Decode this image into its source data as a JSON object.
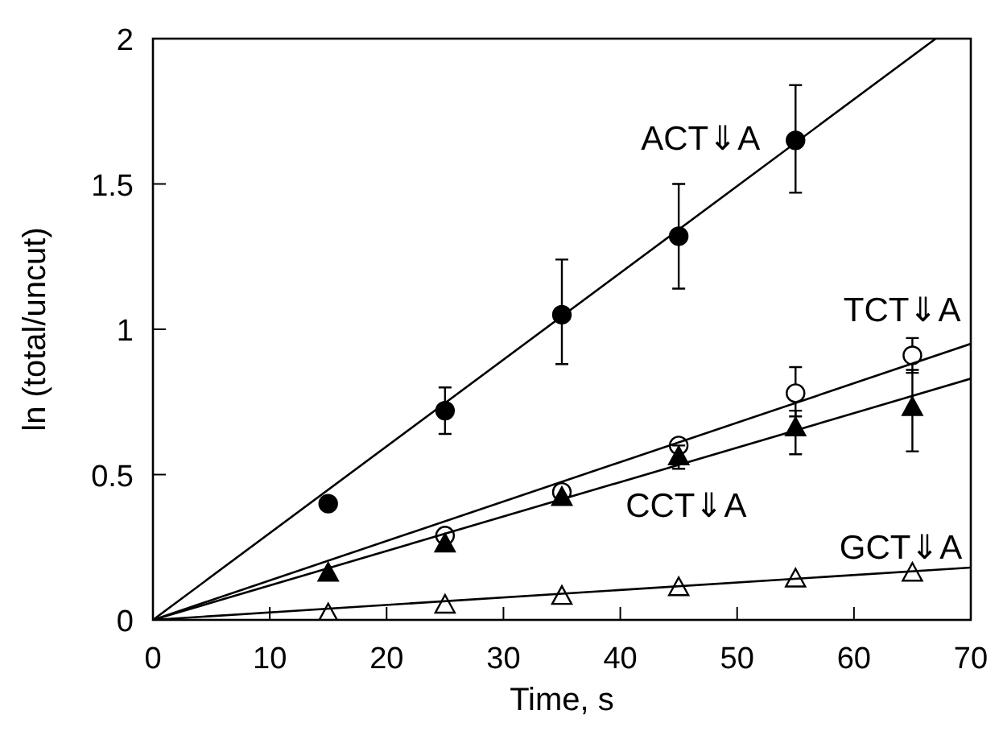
{
  "chart_data": {
    "type": "scatter",
    "xlabel": "Time, s",
    "ylabel": "ln (total/uncut)",
    "xlim": [
      0,
      70
    ],
    "ylim": [
      0,
      2
    ],
    "xticks": [
      0,
      10,
      20,
      30,
      40,
      50,
      60,
      70
    ],
    "yticks": [
      0,
      0.5,
      1,
      1.5,
      2
    ],
    "grid": false,
    "series": [
      {
        "name": "ACT⇓A",
        "color": "#000000",
        "marker": "circle",
        "x": [
          15,
          25,
          35,
          45,
          55
        ],
        "values": [
          0.4,
          0.72,
          1.05,
          1.32,
          1.65
        ],
        "errors": [
          null,
          [
            0.64,
            0.8
          ],
          [
            0.88,
            1.24
          ],
          [
            1.14,
            1.5
          ],
          [
            1.47,
            1.84
          ]
        ]
      },
      {
        "name": "TCT⇓A",
        "color": "#ffffff",
        "marker": "circle",
        "x": [
          25,
          35,
          45,
          55,
          65
        ],
        "values": [
          0.29,
          0.44,
          0.6,
          0.78,
          0.91
        ],
        "errors": [
          null,
          null,
          null,
          [
            0.7,
            0.87
          ],
          [
            0.85,
            0.97
          ]
        ]
      },
      {
        "name": "CCT⇓A",
        "color": "#000000",
        "marker": "triangle",
        "x": [
          15,
          25,
          35,
          45,
          55,
          65
        ],
        "values": [
          0.16,
          0.26,
          0.42,
          0.56,
          0.66,
          0.73
        ],
        "errors": [
          null,
          null,
          null,
          [
            0.52,
            0.6
          ],
          [
            0.57,
            0.72
          ],
          [
            0.58,
            0.86
          ]
        ]
      },
      {
        "name": "GCT⇓A",
        "color": "#ffffff",
        "marker": "triangle",
        "x": [
          15,
          25,
          35,
          45,
          55,
          65
        ],
        "values": [
          0.02,
          0.05,
          0.08,
          0.11,
          0.14,
          0.16
        ]
      },
      {
        "type": "line",
        "color": "#000000",
        "x": [
          0,
          67
        ],
        "values": [
          0,
          2
        ]
      },
      {
        "type": "line",
        "color": "#000000",
        "x": [
          0,
          70
        ],
        "values": [
          0,
          0.95
        ]
      },
      {
        "type": "line",
        "color": "#000000",
        "x": [
          0,
          70
        ],
        "values": [
          0,
          0.83
        ]
      },
      {
        "type": "line",
        "color": "#000000",
        "x": [
          0,
          70
        ],
        "values": [
          0,
          0.18
        ]
      }
    ]
  }
}
